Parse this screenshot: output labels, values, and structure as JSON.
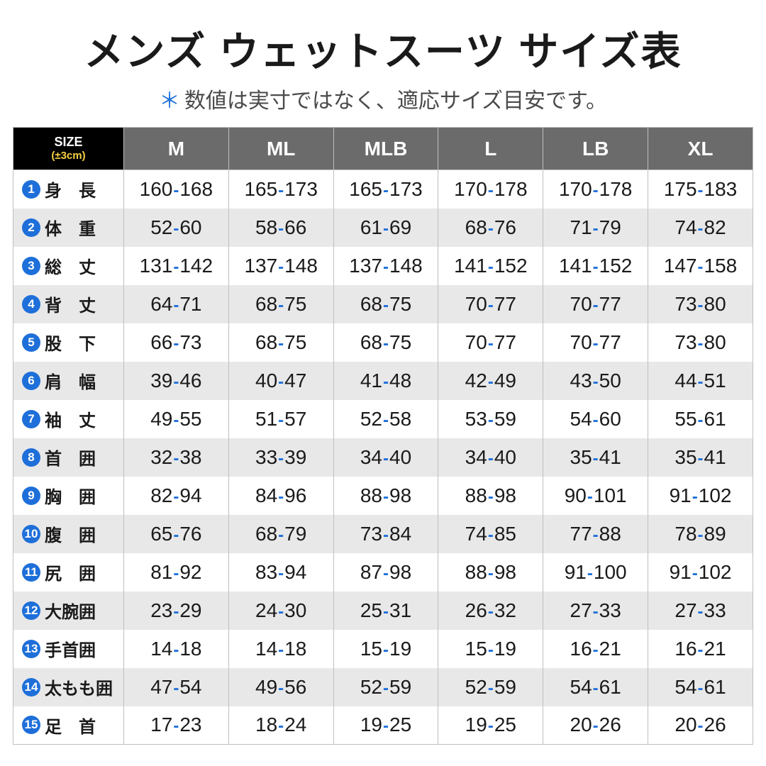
{
  "title": "メンズ ウェットスーツ サイズ表",
  "subtitle_star": "＊",
  "subtitle": "数値は実寸ではなく、適応サイズ目安です。",
  "corner_label": "SIZE",
  "corner_tolerance": "(±3cm)",
  "sizes": [
    "M",
    "ML",
    "MLB",
    "L",
    "LB",
    "XL"
  ],
  "rows": [
    {
      "num": "1",
      "label": "身　長",
      "vals": [
        [
          160,
          168
        ],
        [
          165,
          173
        ],
        [
          165,
          173
        ],
        [
          170,
          178
        ],
        [
          170,
          178
        ],
        [
          175,
          183
        ]
      ]
    },
    {
      "num": "2",
      "label": "体　重",
      "vals": [
        [
          52,
          60
        ],
        [
          58,
          66
        ],
        [
          61,
          69
        ],
        [
          68,
          76
        ],
        [
          71,
          79
        ],
        [
          74,
          82
        ]
      ]
    },
    {
      "num": "3",
      "label": "総　丈",
      "vals": [
        [
          131,
          142
        ],
        [
          137,
          148
        ],
        [
          137,
          148
        ],
        [
          141,
          152
        ],
        [
          141,
          152
        ],
        [
          147,
          158
        ]
      ]
    },
    {
      "num": "4",
      "label": "背　丈",
      "vals": [
        [
          64,
          71
        ],
        [
          68,
          75
        ],
        [
          68,
          75
        ],
        [
          70,
          77
        ],
        [
          70,
          77
        ],
        [
          73,
          80
        ]
      ]
    },
    {
      "num": "5",
      "label": "股　下",
      "vals": [
        [
          66,
          73
        ],
        [
          68,
          75
        ],
        [
          68,
          75
        ],
        [
          70,
          77
        ],
        [
          70,
          77
        ],
        [
          73,
          80
        ]
      ]
    },
    {
      "num": "6",
      "label": "肩　幅",
      "vals": [
        [
          39,
          46
        ],
        [
          40,
          47
        ],
        [
          41,
          48
        ],
        [
          42,
          49
        ],
        [
          43,
          50
        ],
        [
          44,
          51
        ]
      ]
    },
    {
      "num": "7",
      "label": "袖　丈",
      "vals": [
        [
          49,
          55
        ],
        [
          51,
          57
        ],
        [
          52,
          58
        ],
        [
          53,
          59
        ],
        [
          54,
          60
        ],
        [
          55,
          61
        ]
      ]
    },
    {
      "num": "8",
      "label": "首　囲",
      "vals": [
        [
          32,
          38
        ],
        [
          33,
          39
        ],
        [
          34,
          40
        ],
        [
          34,
          40
        ],
        [
          35,
          41
        ],
        [
          35,
          41
        ]
      ]
    },
    {
      "num": "9",
      "label": "胸　囲",
      "vals": [
        [
          82,
          94
        ],
        [
          84,
          96
        ],
        [
          88,
          98
        ],
        [
          88,
          98
        ],
        [
          90,
          101
        ],
        [
          91,
          102
        ]
      ]
    },
    {
      "num": "10",
      "label": "腹　囲",
      "vals": [
        [
          65,
          76
        ],
        [
          68,
          79
        ],
        [
          73,
          84
        ],
        [
          74,
          85
        ],
        [
          77,
          88
        ],
        [
          78,
          89
        ]
      ]
    },
    {
      "num": "11",
      "label": "尻　囲",
      "vals": [
        [
          81,
          92
        ],
        [
          83,
          94
        ],
        [
          87,
          98
        ],
        [
          88,
          98
        ],
        [
          91,
          100
        ],
        [
          91,
          102
        ]
      ]
    },
    {
      "num": "12",
      "label": "大腕囲",
      "vals": [
        [
          23,
          29
        ],
        [
          24,
          30
        ],
        [
          25,
          31
        ],
        [
          26,
          32
        ],
        [
          27,
          33
        ],
        [
          27,
          33
        ]
      ]
    },
    {
      "num": "13",
      "label": "手首囲",
      "vals": [
        [
          14,
          18
        ],
        [
          14,
          18
        ],
        [
          15,
          19
        ],
        [
          15,
          19
        ],
        [
          16,
          21
        ],
        [
          16,
          21
        ]
      ]
    },
    {
      "num": "14",
      "label": "太もも囲",
      "vals": [
        [
          47,
          54
        ],
        [
          49,
          56
        ],
        [
          52,
          59
        ],
        [
          52,
          59
        ],
        [
          54,
          61
        ],
        [
          54,
          61
        ]
      ]
    },
    {
      "num": "15",
      "label": "足　首",
      "vals": [
        [
          17,
          23
        ],
        [
          18,
          24
        ],
        [
          19,
          25
        ],
        [
          19,
          25
        ],
        [
          20,
          26
        ],
        [
          20,
          26
        ]
      ]
    }
  ],
  "colors": {
    "accent": "#1e6fd9",
    "header_bg": "#6b6b6b",
    "corner_bg": "#000000",
    "tolerance": "#f5d142",
    "row_alt": "#e8e8e8",
    "border": "#bfbfbf",
    "text": "#1a1a1a"
  },
  "typography": {
    "title_size": 56,
    "subtitle_size": 30,
    "header_size": 28,
    "label_size": 24,
    "value_size": 28
  }
}
